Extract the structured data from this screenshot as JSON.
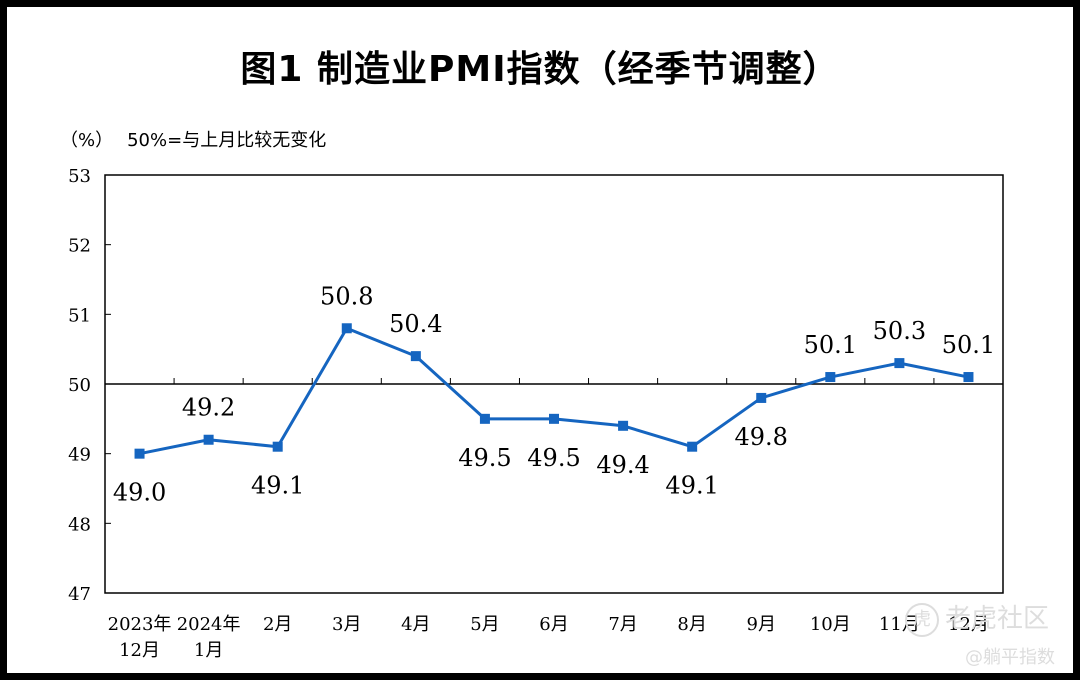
{
  "chart_data": {
    "type": "line",
    "title": "图1  制造业PMI指数（经季节调整）",
    "unit_label": "（%）",
    "reference_note": "50%=与上月比较无变化",
    "categories": [
      [
        "2023年",
        "12月"
      ],
      [
        "2024年",
        "1月"
      ],
      [
        "2月"
      ],
      [
        "3月"
      ],
      [
        "4月"
      ],
      [
        "5月"
      ],
      [
        "6月"
      ],
      [
        "7月"
      ],
      [
        "8月"
      ],
      [
        "9月"
      ],
      [
        "10月"
      ],
      [
        "11月"
      ],
      [
        "12月"
      ]
    ],
    "values": [
      49.0,
      49.2,
      49.1,
      50.8,
      50.4,
      49.5,
      49.5,
      49.4,
      49.1,
      49.8,
      50.1,
      50.3,
      50.1
    ],
    "value_labels": [
      "49.0",
      "49.2",
      "49.1",
      "50.8",
      "50.4",
      "49.5",
      "49.5",
      "49.4",
      "49.1",
      "49.8",
      "50.1",
      "50.3",
      "50.1"
    ],
    "label_side": [
      "below",
      "above",
      "below",
      "above",
      "above",
      "below",
      "below",
      "below",
      "below",
      "below",
      "above",
      "above",
      "above"
    ],
    "ylim": [
      47,
      53
    ],
    "yticks": [
      "47",
      "48",
      "49",
      "50",
      "51",
      "52",
      "53"
    ],
    "reference_line": 50,
    "grid": false,
    "legend": "none",
    "colors": {
      "series": "#1565c0",
      "axis": "#000000",
      "text": "#000000"
    }
  },
  "watermark": {
    "community": "老虎社区",
    "author": "@躺平指数"
  }
}
